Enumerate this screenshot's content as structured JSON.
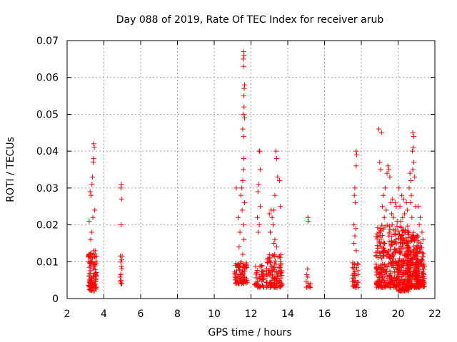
{
  "chart_data": {
    "type": "scatter",
    "title": "Day 088 of 2019, Rate Of TEC Index for receiver arub",
    "xlabel": "GPS time / hours",
    "ylabel": "ROTI / TECUs",
    "xlim": [
      2,
      22
    ],
    "ylim": [
      0,
      0.07
    ],
    "xticks": [
      2,
      4,
      6,
      8,
      10,
      12,
      14,
      16,
      18,
      20,
      22
    ],
    "xtick_labels": [
      "2",
      "4",
      "6",
      "8",
      "10",
      "12",
      "14",
      "16",
      "18",
      "20",
      "22"
    ],
    "yticks": [
      0,
      0.01,
      0.02,
      0.03,
      0.04,
      0.05,
      0.06,
      0.07
    ],
    "ytick_labels": [
      "0",
      "0.01",
      "0.02",
      "0.03",
      "0.04",
      "0.05",
      "0.06",
      "0.07"
    ],
    "grid": true,
    "legend": "none",
    "marker": "plus",
    "color": "#ff0000",
    "clusters": [
      {
        "x": [
          3.15,
          3.6
        ],
        "y": [
          0.002,
          0.013
        ],
        "n": 90,
        "maxY": 0.042,
        "spikes": [
          [
            3.45,
            0.042
          ],
          [
            3.48,
            0.041
          ],
          [
            3.44,
            0.038
          ],
          [
            3.42,
            0.037
          ],
          [
            3.38,
            0.033
          ],
          [
            3.35,
            0.031
          ],
          [
            3.25,
            0.029
          ],
          [
            3.3,
            0.028
          ],
          [
            3.5,
            0.024
          ],
          [
            3.4,
            0.022
          ],
          [
            3.2,
            0.021
          ],
          [
            3.33,
            0.018
          ],
          [
            3.28,
            0.016
          ]
        ]
      },
      {
        "x": [
          4.85,
          5.05
        ],
        "y": [
          0.004,
          0.012
        ],
        "n": 14,
        "spikes": [
          [
            4.95,
            0.031
          ],
          [
            4.93,
            0.03
          ],
          [
            4.96,
            0.027
          ],
          [
            4.94,
            0.02
          ]
        ]
      },
      {
        "x": [
          11.1,
          11.8
        ],
        "y": [
          0.004,
          0.01
        ],
        "n": 80,
        "spikes": [
          [
            11.6,
            0.067
          ],
          [
            11.62,
            0.066
          ],
          [
            11.58,
            0.065
          ],
          [
            11.6,
            0.063
          ],
          [
            11.65,
            0.058
          ],
          [
            11.63,
            0.057
          ],
          [
            11.6,
            0.055
          ],
          [
            11.62,
            0.052
          ],
          [
            11.58,
            0.05
          ],
          [
            11.65,
            0.049
          ],
          [
            11.55,
            0.046
          ],
          [
            11.6,
            0.044
          ],
          [
            11.6,
            0.038
          ],
          [
            11.58,
            0.035
          ],
          [
            11.55,
            0.032
          ],
          [
            11.5,
            0.03
          ],
          [
            11.2,
            0.03
          ],
          [
            11.45,
            0.028
          ],
          [
            11.65,
            0.026
          ],
          [
            11.52,
            0.024
          ],
          [
            11.3,
            0.022
          ],
          [
            11.58,
            0.02
          ],
          [
            11.4,
            0.018
          ],
          [
            11.62,
            0.016
          ],
          [
            11.35,
            0.014
          ],
          [
            11.55,
            0.012
          ]
        ]
      },
      {
        "x": [
          12.2,
          12.7
        ],
        "y": [
          0.003,
          0.009
        ],
        "n": 45,
        "spikes": [
          [
            12.45,
            0.04
          ],
          [
            12.48,
            0.04
          ],
          [
            12.5,
            0.035
          ],
          [
            12.42,
            0.031
          ],
          [
            12.38,
            0.029
          ],
          [
            12.5,
            0.025
          ],
          [
            12.35,
            0.022
          ],
          [
            12.45,
            0.02
          ],
          [
            12.4,
            0.018
          ]
        ]
      },
      {
        "x": [
          12.8,
          13.7
        ],
        "y": [
          0.003,
          0.012
        ],
        "n": 110,
        "spikes": [
          [
            13.35,
            0.04
          ],
          [
            13.4,
            0.038
          ],
          [
            13.45,
            0.033
          ],
          [
            13.55,
            0.032
          ],
          [
            13.3,
            0.028
          ],
          [
            13.6,
            0.025
          ],
          [
            13.25,
            0.024
          ],
          [
            13.1,
            0.024
          ],
          [
            13.0,
            0.023
          ],
          [
            13.15,
            0.022
          ],
          [
            13.2,
            0.02
          ],
          [
            13.05,
            0.018
          ],
          [
            13.3,
            0.016
          ],
          [
            13.25,
            0.015
          ],
          [
            13.4,
            0.014
          ]
        ]
      },
      {
        "x": [
          15.0,
          15.25
        ],
        "y": [
          0.003,
          0.007
        ],
        "n": 10,
        "spikes": [
          [
            15.1,
            0.022
          ],
          [
            15.12,
            0.021
          ],
          [
            15.08,
            0.008
          ]
        ]
      },
      {
        "x": [
          17.5,
          17.85
        ],
        "y": [
          0.003,
          0.01
        ],
        "n": 35,
        "spikes": [
          [
            17.72,
            0.04
          ],
          [
            17.75,
            0.039
          ],
          [
            17.72,
            0.036
          ],
          [
            17.65,
            0.03
          ],
          [
            17.62,
            0.028
          ],
          [
            17.68,
            0.026
          ],
          [
            17.6,
            0.02
          ],
          [
            17.7,
            0.019
          ],
          [
            17.65,
            0.017
          ],
          [
            17.6,
            0.015
          ],
          [
            17.72,
            0.013
          ]
        ]
      },
      {
        "x": [
          18.8,
          20.0
        ],
        "y": [
          0.003,
          0.02
        ],
        "n": 260,
        "spikes": [
          [
            18.95,
            0.046
          ],
          [
            19.1,
            0.045
          ],
          [
            19.0,
            0.037
          ],
          [
            19.05,
            0.035
          ],
          [
            19.45,
            0.036
          ],
          [
            19.5,
            0.035
          ],
          [
            19.4,
            0.034
          ],
          [
            19.55,
            0.033
          ],
          [
            19.3,
            0.03
          ],
          [
            19.2,
            0.028
          ],
          [
            19.7,
            0.027
          ],
          [
            19.6,
            0.026
          ],
          [
            19.85,
            0.026
          ],
          [
            19.15,
            0.025
          ],
          [
            19.9,
            0.025
          ],
          [
            19.35,
            0.024
          ],
          [
            19.65,
            0.023
          ],
          [
            19.75,
            0.022
          ],
          [
            19.25,
            0.022
          ],
          [
            19.95,
            0.021
          ]
        ]
      },
      {
        "x": [
          20.0,
          20.6
        ],
        "y": [
          0.002,
          0.02
        ],
        "n": 170,
        "spikes": [
          [
            20.05,
            0.03
          ],
          [
            20.2,
            0.028
          ],
          [
            20.3,
            0.027
          ],
          [
            20.45,
            0.026
          ],
          [
            20.1,
            0.025
          ],
          [
            20.5,
            0.024
          ],
          [
            20.35,
            0.023
          ],
          [
            20.25,
            0.022
          ],
          [
            20.15,
            0.021
          ]
        ]
      },
      {
        "x": [
          20.5,
          21.1
        ],
        "y": [
          0.003,
          0.018
        ],
        "n": 170,
        "spikes": [
          [
            20.8,
            0.045
          ],
          [
            20.85,
            0.044
          ],
          [
            20.82,
            0.041
          ],
          [
            20.78,
            0.04
          ],
          [
            20.85,
            0.037
          ],
          [
            20.8,
            0.035
          ],
          [
            20.65,
            0.034
          ],
          [
            20.9,
            0.033
          ],
          [
            20.7,
            0.032
          ],
          [
            20.6,
            0.03
          ],
          [
            20.72,
            0.028
          ],
          [
            20.68,
            0.026
          ],
          [
            20.95,
            0.025
          ],
          [
            20.75,
            0.022
          ]
        ]
      },
      {
        "x": [
          21.0,
          21.45
        ],
        "y": [
          0.003,
          0.014
        ],
        "n": 90,
        "spikes": [
          [
            21.1,
            0.025
          ],
          [
            21.2,
            0.022
          ],
          [
            21.15,
            0.02
          ],
          [
            21.3,
            0.018
          ],
          [
            21.05,
            0.017
          ],
          [
            21.35,
            0.016
          ],
          [
            21.25,
            0.015
          ]
        ]
      }
    ]
  }
}
